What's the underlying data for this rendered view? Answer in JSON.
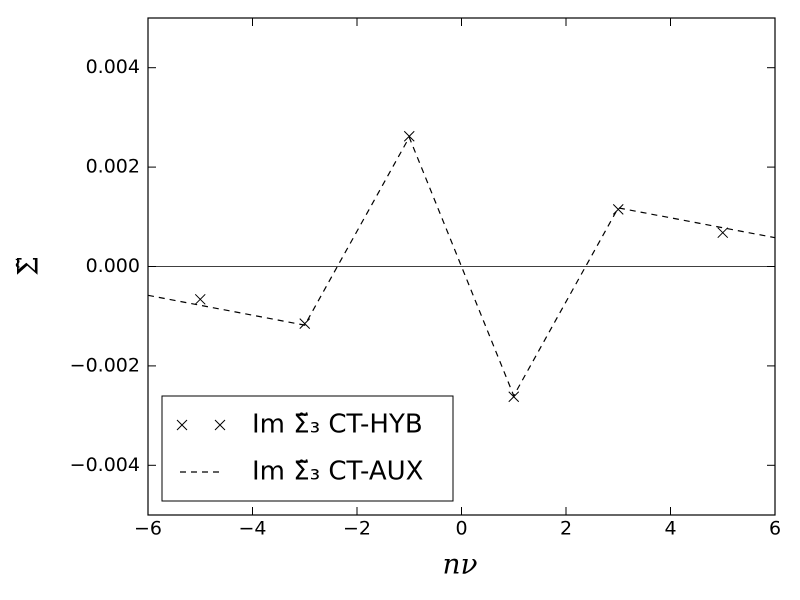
{
  "chart_data": {
    "type": "line",
    "xlabel": "nν",
    "ylabel": "Σ̃",
    "xlim": [
      -6,
      6
    ],
    "ylim": [
      -0.005,
      0.005
    ],
    "xticks": [
      {
        "value": -6,
        "label": "−6"
      },
      {
        "value": -4,
        "label": "−4"
      },
      {
        "value": -2,
        "label": "−2"
      },
      0,
      2,
      4,
      6
    ],
    "yticks": [
      {
        "value": -0.004,
        "label": "−0.004"
      },
      {
        "value": -0.002,
        "label": "−0.002"
      },
      {
        "value": 0,
        "label": "0.000"
      },
      {
        "value": 0.002,
        "label": "0.002"
      },
      {
        "value": 0.004,
        "label": "0.004"
      }
    ],
    "hlines": [
      0
    ],
    "legend": "lower left",
    "series": [
      {
        "name": "Im Σ̃₃ CT-HYB",
        "color": "#000000",
        "style": "marker",
        "x": [
          -5,
          -3,
          -1,
          1,
          3,
          5
        ],
        "values": [
          -0.00066,
          -0.00115,
          0.00262,
          -0.00262,
          0.00115,
          0.00068
        ]
      },
      {
        "name": "Im Σ̃₃ CT-AUX",
        "color": "#000000",
        "style": "dashed",
        "x": [
          -6,
          -3,
          -1,
          1,
          3,
          6
        ],
        "values": [
          -0.00058,
          -0.00118,
          0.0026,
          -0.0026,
          0.00118,
          0.00058
        ]
      }
    ]
  }
}
